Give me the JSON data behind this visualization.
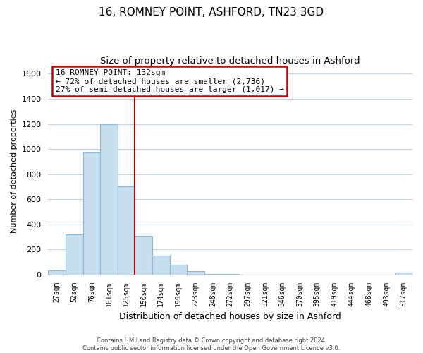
{
  "title": "16, ROMNEY POINT, ASHFORD, TN23 3GD",
  "subtitle": "Size of property relative to detached houses in Ashford",
  "xlabel": "Distribution of detached houses by size in Ashford",
  "ylabel": "Number of detached properties",
  "bar_labels": [
    "27sqm",
    "52sqm",
    "76sqm",
    "101sqm",
    "125sqm",
    "150sqm",
    "174sqm",
    "199sqm",
    "223sqm",
    "248sqm",
    "272sqm",
    "297sqm",
    "321sqm",
    "346sqm",
    "370sqm",
    "395sqm",
    "419sqm",
    "444sqm",
    "468sqm",
    "493sqm",
    "517sqm"
  ],
  "bar_values": [
    30,
    320,
    970,
    1200,
    700,
    310,
    150,
    75,
    25,
    5,
    2,
    0,
    0,
    0,
    0,
    0,
    0,
    0,
    0,
    0,
    15
  ],
  "bar_color": "#c8dff0",
  "bar_edge_color": "#8ab8d8",
  "vline_index": 4,
  "vline_color": "#aa0000",
  "ylim": [
    0,
    1650
  ],
  "yticks": [
    0,
    200,
    400,
    600,
    800,
    1000,
    1200,
    1400,
    1600
  ],
  "annotation_title": "16 ROMNEY POINT: 132sqm",
  "annotation_line1": "← 72% of detached houses are smaller (2,736)",
  "annotation_line2": "27% of semi-detached houses are larger (1,017) →",
  "annotation_box_color": "#ffffff",
  "annotation_box_edge": "#cc0000",
  "footer_line1": "Contains HM Land Registry data © Crown copyright and database right 2024.",
  "footer_line2": "Contains public sector information licensed under the Open Government Licence v3.0.",
  "background_color": "#ffffff",
  "grid_color": "#c8d4e8",
  "title_fontsize": 11,
  "subtitle_fontsize": 9.5
}
